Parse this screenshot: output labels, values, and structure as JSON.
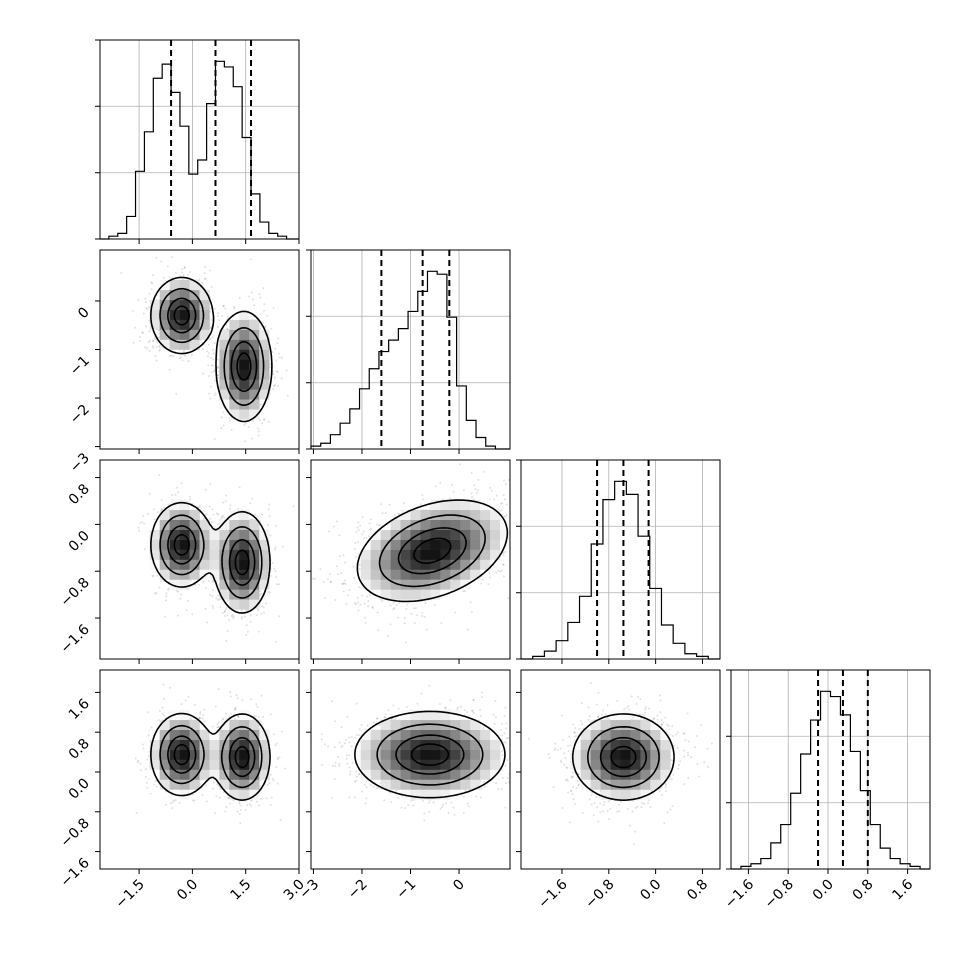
{
  "chart_data": {
    "type": "corner",
    "dimensions": 4,
    "parameters": [
      {
        "index": 0,
        "range": [
          -2.6,
          3.0
        ],
        "ticks": [
          -1.5,
          0.0,
          1.5,
          3.0
        ],
        "tick_labels": [
          "−1.5",
          "0.0",
          "1.5",
          "3.0"
        ],
        "quantiles": [
          -0.6,
          0.65,
          1.65
        ],
        "histogram": {
          "bin_edges": [
            -2.6,
            -2.35,
            -2.1,
            -1.85,
            -1.6,
            -1.35,
            -1.1,
            -0.85,
            -0.6,
            -0.35,
            -0.1,
            0.15,
            0.4,
            0.65,
            0.9,
            1.15,
            1.4,
            1.65,
            1.9,
            2.15,
            2.4,
            2.65,
            3.0
          ],
          "counts": [
            0,
            1,
            2,
            8,
            24,
            38,
            57,
            62,
            52,
            40,
            23,
            28,
            48,
            63,
            61,
            54,
            36,
            16,
            6,
            2,
            1,
            0
          ]
        },
        "modes": [
          {
            "center": -0.3,
            "spread": 0.5
          },
          {
            "center": 1.45,
            "spread": 0.5
          }
        ]
      },
      {
        "index": 1,
        "range": [
          -3.05,
          1.05
        ],
        "ticks": [
          -3,
          -2,
          -1,
          0
        ],
        "tick_labels": [
          "−3",
          "−2",
          "−1",
          "0"
        ],
        "quantiles": [
          -1.6,
          -0.75,
          -0.2
        ],
        "histogram": {
          "bin_edges": [
            -3.05,
            -2.85,
            -2.65,
            -2.45,
            -2.25,
            -2.05,
            -1.85,
            -1.65,
            -1.45,
            -1.25,
            -1.05,
            -0.85,
            -0.65,
            -0.45,
            -0.25,
            -0.05,
            0.15,
            0.35,
            0.55,
            0.75,
            1.05
          ],
          "counts": [
            1,
            2,
            5,
            9,
            14,
            21,
            28,
            34,
            38,
            42,
            48,
            55,
            62,
            61,
            46,
            22,
            10,
            4,
            1,
            0
          ]
        }
      },
      {
        "index": 2,
        "range": [
          -2.3,
          1.1
        ],
        "ticks": [
          -1.6,
          -0.8,
          0.0,
          0.8
        ],
        "tick_labels": [
          "−1.6",
          "−0.8",
          "0.0",
          "0.8"
        ],
        "quantiles": [
          -1.0,
          -0.55,
          -0.12
        ],
        "histogram": {
          "bin_edges": [
            -2.3,
            -2.1,
            -1.9,
            -1.7,
            -1.5,
            -1.3,
            -1.1,
            -0.9,
            -0.7,
            -0.5,
            -0.3,
            -0.1,
            0.1,
            0.3,
            0.5,
            0.7,
            0.9,
            1.1
          ],
          "counts": [
            0,
            1,
            3,
            7,
            14,
            24,
            44,
            61,
            68,
            63,
            47,
            27,
            13,
            6,
            2,
            1,
            0
          ]
        }
      },
      {
        "index": 3,
        "range": [
          -1.95,
          2.05
        ],
        "ticks": [
          -1.6,
          -0.8,
          0.0,
          0.8,
          1.6
        ],
        "tick_labels": [
          "−1.6",
          "−0.8",
          "0.0",
          "0.8",
          "1.6"
        ],
        "quantiles": [
          -0.2,
          0.3,
          0.8
        ],
        "histogram": {
          "bin_edges": [
            -1.95,
            -1.75,
            -1.55,
            -1.35,
            -1.15,
            -0.95,
            -0.75,
            -0.55,
            -0.35,
            -0.15,
            0.05,
            0.25,
            0.45,
            0.65,
            0.85,
            1.05,
            1.25,
            1.45,
            1.65,
            1.85,
            2.05
          ],
          "counts": [
            0,
            1,
            2,
            4,
            10,
            17,
            29,
            44,
            57,
            68,
            66,
            59,
            45,
            30,
            17,
            8,
            4,
            2,
            1,
            0
          ]
        }
      }
    ],
    "joint_panels": [
      {
        "x": 0,
        "y": 1,
        "modes": [
          {
            "cx": -0.3,
            "cy": -0.3,
            "sx": 0.42,
            "sy": 0.38
          },
          {
            "cx": 1.45,
            "cy": -1.35,
            "sx": 0.38,
            "sy": 0.55
          }
        ]
      },
      {
        "x": 0,
        "y": 2,
        "modes": [
          {
            "cx": -0.3,
            "cy": -0.35,
            "sx": 0.42,
            "sy": 0.35
          },
          {
            "cx": 1.4,
            "cy": -0.65,
            "sx": 0.38,
            "sy": 0.42
          }
        ]
      },
      {
        "x": 1,
        "y": 2,
        "modes": [
          {
            "cx": -0.55,
            "cy": -0.45,
            "sx": 0.75,
            "sy": 0.42,
            "rho": 0.35
          }
        ]
      },
      {
        "x": 0,
        "y": 3,
        "modes": [
          {
            "cx": -0.3,
            "cy": 0.35,
            "sx": 0.42,
            "sy": 0.4
          },
          {
            "cx": 1.4,
            "cy": 0.3,
            "sx": 0.38,
            "sy": 0.42
          }
        ]
      },
      {
        "x": 1,
        "y": 3,
        "modes": [
          {
            "cx": -0.6,
            "cy": 0.35,
            "sx": 0.75,
            "sy": 0.42
          }
        ]
      },
      {
        "x": 2,
        "y": 3,
        "modes": [
          {
            "cx": -0.55,
            "cy": 0.3,
            "sx": 0.42,
            "sy": 0.42
          }
        ]
      }
    ],
    "contour_levels": [
      0.12,
      0.35,
      0.65,
      0.88
    ],
    "grid": true,
    "title": "",
    "xlabel": "",
    "ylabel": ""
  }
}
